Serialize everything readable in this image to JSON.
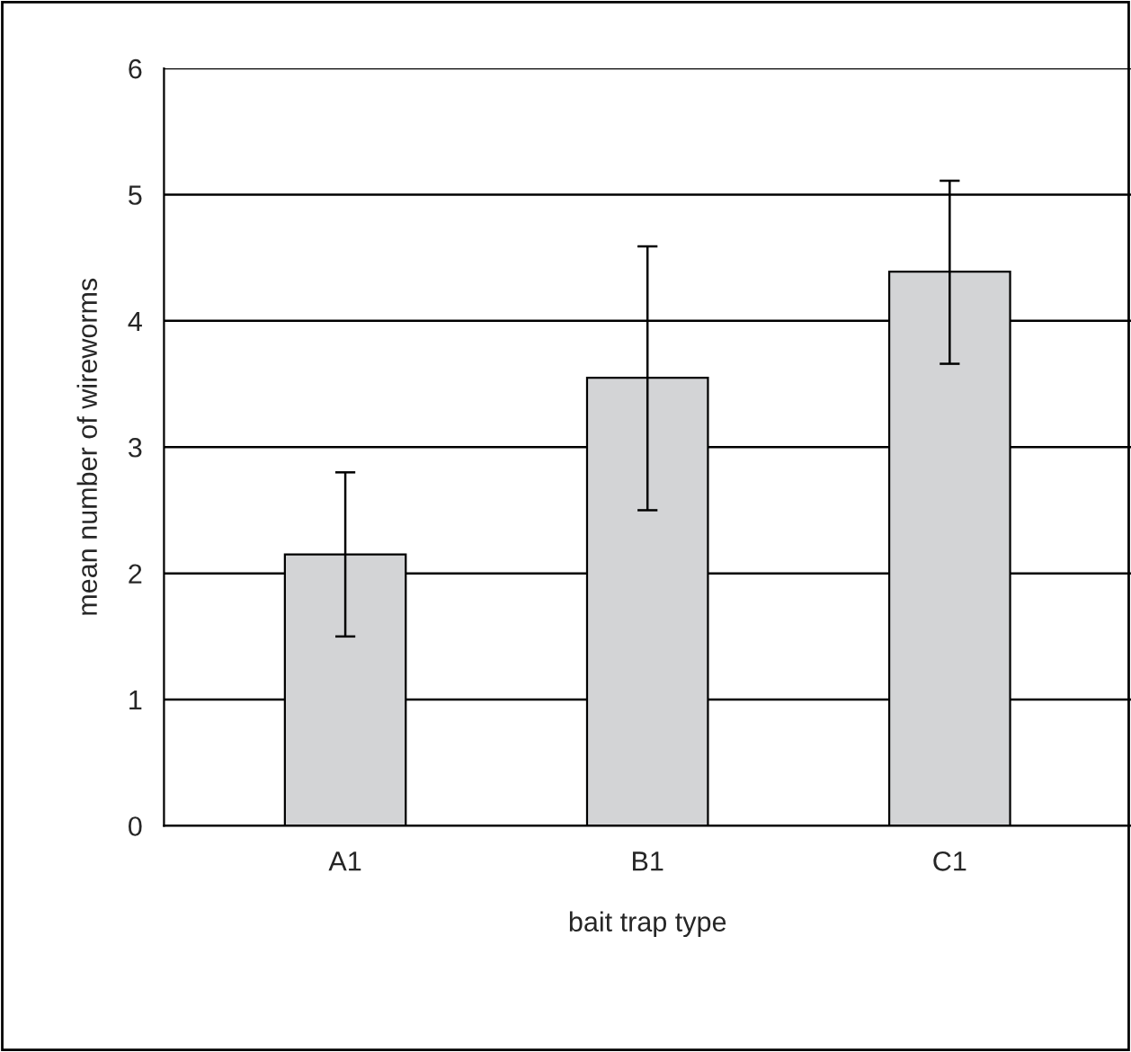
{
  "chart_data": {
    "type": "bar",
    "xlabel": "bait trap type",
    "ylabel": "mean number of wireworms",
    "categories": [
      "A1",
      "B1",
      "C1"
    ],
    "series": [
      {
        "color": "#d3d4d6",
        "values": [
          2.15,
          3.55,
          4.39
        ],
        "errors": [
          [
            1.5,
            2.8
          ],
          [
            2.5,
            4.59
          ],
          [
            3.66,
            5.11
          ]
        ]
      }
    ],
    "ylim": [
      0,
      6
    ],
    "yticks": [
      0,
      1,
      2,
      3,
      4,
      5,
      6
    ],
    "grid": "y",
    "legend": false
  }
}
